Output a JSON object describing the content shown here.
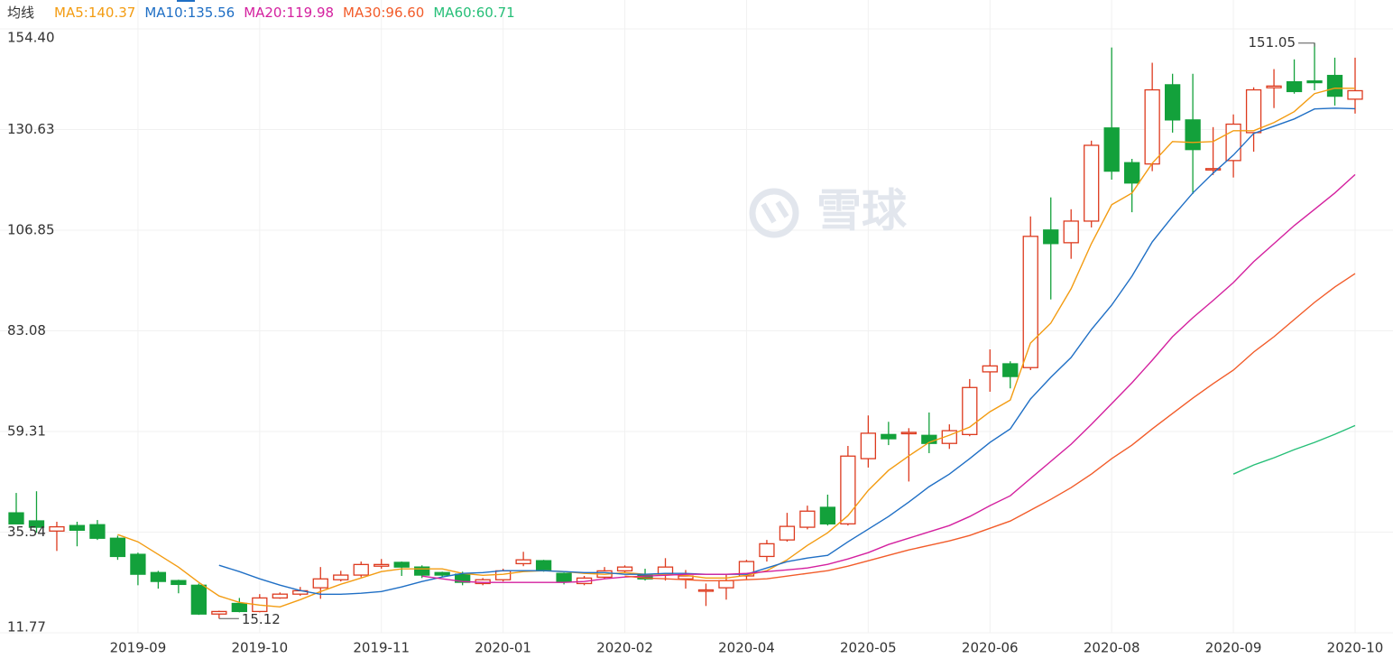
{
  "chart_data": {
    "type": "candlestick",
    "legend_title": "均线",
    "legend_separator": ":",
    "watermark": "雪球",
    "ylim": [
      11.77,
      154.4
    ],
    "yticks": [
      {
        "value": 11.77,
        "label": "11.77"
      },
      {
        "value": 35.54,
        "label": "35.54"
      },
      {
        "value": 59.31,
        "label": "59.31"
      },
      {
        "value": 83.08,
        "label": "83.08"
      },
      {
        "value": 106.85,
        "label": "106.85"
      },
      {
        "value": 130.63,
        "label": "130.63"
      },
      {
        "value": 154.4,
        "label": "154.40"
      }
    ],
    "grid": true,
    "up_color": "#dd3a1e",
    "down_color": "#13a13b",
    "categories": [
      null,
      null,
      null,
      null,
      null,
      null,
      "2019-09",
      null,
      null,
      null,
      null,
      null,
      "2019-10",
      null,
      null,
      null,
      null,
      null,
      "2019-11",
      null,
      null,
      null,
      null,
      null,
      "2020-01",
      null,
      null,
      null,
      null,
      null,
      "2020-02",
      null,
      null,
      null,
      null,
      null,
      "2020-04",
      null,
      null,
      null,
      null,
      null,
      "2020-05",
      null,
      null,
      null,
      null,
      null,
      "2020-06",
      null,
      null,
      null,
      null,
      null,
      "2020-08",
      null,
      null,
      null,
      null,
      null,
      "2020-09",
      null,
      null,
      null,
      null,
      null,
      "2020-10"
    ],
    "open": [
      40.1,
      38.2,
      35.8,
      37.1,
      37.3,
      34.1,
      30.3,
      26.0,
      24.1,
      23.0,
      16.2,
      18.7,
      16.8,
      20.0,
      20.9,
      22.4,
      24.3,
      25.4,
      27.5,
      28.4,
      27.3,
      26.0,
      25.6,
      23.4,
      24.3,
      28.1,
      28.8,
      25.8,
      23.4,
      24.9,
      26.4,
      25.6,
      25.6,
      24.5,
      21.7,
      22.4,
      25.2,
      29.8,
      33.7,
      36.7,
      41.4,
      37.5,
      52.9,
      58.6,
      58.8,
      58.4,
      56.5,
      58.6,
      73.4,
      75.3,
      74.4,
      106.9,
      103.9,
      109.0,
      131.0,
      122.8,
      122.5,
      141.2,
      132.9,
      121.2,
      123.3,
      129.9,
      140.5,
      141.9,
      142.1,
      143.4,
      137.8
    ],
    "close": [
      37.5,
      36.7,
      36.8,
      36.0,
      34.1,
      29.8,
      25.6,
      23.9,
      23.2,
      16.2,
      16.8,
      16.8,
      20.0,
      20.9,
      21.7,
      24.5,
      25.4,
      27.9,
      27.9,
      27.3,
      25.4,
      25.4,
      23.7,
      24.3,
      26.4,
      29.0,
      26.4,
      23.9,
      24.7,
      26.4,
      27.3,
      24.5,
      27.3,
      25.2,
      21.9,
      24.1,
      28.6,
      32.8,
      36.9,
      40.5,
      37.5,
      53.5,
      58.9,
      57.6,
      59.1,
      56.5,
      59.5,
      69.7,
      74.8,
      72.3,
      105.4,
      103.7,
      109.0,
      126.9,
      120.8,
      118.0,
      140.0,
      132.9,
      125.9,
      121.4,
      131.9,
      140.0,
      140.9,
      139.6,
      141.7,
      138.5,
      139.8
    ],
    "high": [
      44.8,
      45.2,
      38.0,
      38.0,
      38.4,
      34.7,
      30.7,
      26.4,
      24.3,
      23.4,
      17.0,
      20.0,
      20.9,
      21.3,
      22.6,
      27.3,
      26.4,
      28.6,
      29.2,
      28.6,
      27.7,
      26.2,
      26.2,
      24.7,
      26.9,
      30.9,
      29.0,
      26.0,
      25.2,
      27.3,
      27.7,
      26.9,
      29.4,
      26.6,
      23.4,
      25.6,
      29.0,
      33.7,
      40.1,
      41.8,
      44.4,
      55.9,
      63.1,
      61.6,
      60.1,
      63.8,
      61.0,
      71.7,
      78.7,
      75.9,
      110.1,
      114.6,
      111.8,
      128.0,
      150.0,
      123.7,
      146.4,
      143.8,
      143.8,
      131.2,
      134.2,
      140.6,
      144.9,
      147.2,
      151.05,
      147.6,
      147.6
    ],
    "low": [
      37.5,
      35.4,
      31.1,
      32.2,
      33.7,
      29.0,
      23.0,
      22.2,
      21.1,
      16.0,
      15.12,
      16.6,
      16.6,
      19.8,
      20.5,
      19.8,
      23.9,
      24.9,
      26.9,
      25.2,
      24.7,
      24.9,
      23.0,
      23.0,
      23.9,
      27.5,
      26.2,
      23.2,
      23.0,
      24.5,
      26.0,
      24.1,
      24.1,
      22.2,
      18.1,
      19.6,
      24.3,
      28.6,
      33.3,
      36.2,
      37.1,
      37.1,
      50.8,
      56.1,
      47.5,
      54.2,
      55.2,
      58.2,
      68.7,
      69.5,
      73.8,
      90.5,
      100.1,
      107.5,
      118.8,
      111.1,
      120.8,
      129.9,
      115.4,
      119.9,
      119.3,
      125.4,
      135.7,
      139.1,
      139.9,
      136.3,
      134.4
    ],
    "series": [
      {
        "name": "MA5",
        "color": "#f39c12",
        "values": [
          null,
          null,
          null,
          null,
          null,
          34.97,
          33.26,
          30.27,
          27.28,
          23.66,
          20.46,
          18.96,
          18.32,
          17.89,
          19.6,
          21.52,
          23.23,
          24.72,
          26.22,
          26.86,
          26.86,
          26.86,
          25.79,
          25.36,
          25.58,
          26.22,
          26.43,
          26.22,
          25.79,
          25.58,
          26.0,
          25.58,
          25.58,
          25.36,
          24.72,
          24.72,
          25.36,
          26.43,
          28.99,
          32.41,
          35.39,
          39.45,
          45.42,
          50.12,
          53.53,
          56.73,
          58.44,
          60.36,
          63.99,
          66.76,
          80.21,
          84.9,
          93.01,
          103.68,
          112.86,
          115.63,
          122.67,
          127.8,
          127.58,
          127.8,
          130.36,
          130.36,
          132.28,
          134.84,
          139.11,
          140.39,
          140.37
        ]
      },
      {
        "name": "MA10",
        "color": "#1f6fc5",
        "values": [
          null,
          null,
          null,
          null,
          null,
          null,
          null,
          null,
          null,
          null,
          27.71,
          26.22,
          24.51,
          23.02,
          21.74,
          20.88,
          20.88,
          21.1,
          21.52,
          22.59,
          23.87,
          24.94,
          25.79,
          26.0,
          26.43,
          26.43,
          26.43,
          26.22,
          26.0,
          26.0,
          25.58,
          25.58,
          25.79,
          25.79,
          25.58,
          25.58,
          25.58,
          27.07,
          28.56,
          29.42,
          30.06,
          33.26,
          36.25,
          39.23,
          42.65,
          46.28,
          49.26,
          52.89,
          56.73,
          59.93,
          66.98,
          72.1,
          76.79,
          83.41,
          89.17,
          96.0,
          104.11,
          110.08,
          115.63,
          120.33,
          124.59,
          129.72,
          131.42,
          133.13,
          135.48,
          135.69,
          135.56
        ]
      },
      {
        "name": "MA20",
        "color": "#d4219f",
        "values": [
          null,
          null,
          null,
          null,
          null,
          null,
          null,
          null,
          null,
          null,
          null,
          null,
          null,
          null,
          null,
          null,
          null,
          null,
          null,
          null,
          25.15,
          24.51,
          23.87,
          23.66,
          23.66,
          23.66,
          23.66,
          23.66,
          23.87,
          24.51,
          24.94,
          25.15,
          25.36,
          25.58,
          25.58,
          25.58,
          25.79,
          26.22,
          26.64,
          27.07,
          27.92,
          29.2,
          30.7,
          32.62,
          34.11,
          35.61,
          37.1,
          39.23,
          41.8,
          44.14,
          48.2,
          52.25,
          56.31,
          61.0,
          65.91,
          70.82,
          76.15,
          81.7,
          86.18,
          90.24,
          94.5,
          99.41,
          103.68,
          107.95,
          111.79,
          115.63,
          119.98
        ]
      },
      {
        "name": "MA30",
        "color": "#f25c2a",
        "values": [
          null,
          null,
          null,
          null,
          null,
          null,
          null,
          null,
          null,
          null,
          null,
          null,
          null,
          null,
          null,
          null,
          null,
          null,
          null,
          null,
          null,
          null,
          null,
          null,
          null,
          null,
          null,
          null,
          null,
          null,
          25.15,
          24.72,
          24.51,
          24.3,
          24.08,
          24.08,
          24.3,
          24.51,
          25.15,
          25.79,
          26.43,
          27.5,
          28.78,
          30.06,
          31.34,
          32.41,
          33.47,
          34.75,
          36.46,
          38.17,
          40.73,
          43.29,
          46.06,
          49.26,
          52.89,
          56.09,
          59.93,
          63.56,
          67.19,
          70.6,
          73.81,
          78.07,
          81.7,
          85.76,
          89.81,
          93.44,
          96.6
        ],
        "value_labels": [
          null,
          null,
          null,
          null,
          null,
          null,
          null,
          null,
          null,
          null,
          null,
          null,
          null,
          null,
          null,
          null,
          null,
          null,
          null,
          null,
          null,
          null,
          null,
          null,
          null,
          null,
          null,
          null,
          null,
          null,
          null,
          null,
          null,
          null,
          null,
          null,
          null,
          null,
          null,
          null,
          null,
          null,
          null,
          null,
          null,
          null,
          null,
          null,
          null,
          null,
          null,
          null,
          null,
          null,
          null,
          null,
          null,
          null,
          null,
          null,
          null,
          null,
          null,
          null,
          null,
          null,
          "96.60"
        ]
      },
      {
        "name": "MA60",
        "color": "#26bf78",
        "values": [
          null,
          null,
          null,
          null,
          null,
          null,
          null,
          null,
          null,
          null,
          null,
          null,
          null,
          null,
          null,
          null,
          null,
          null,
          null,
          null,
          null,
          null,
          null,
          null,
          null,
          null,
          null,
          null,
          null,
          null,
          null,
          null,
          null,
          null,
          null,
          null,
          null,
          null,
          null,
          null,
          null,
          null,
          null,
          null,
          null,
          null,
          null,
          null,
          null,
          null,
          null,
          null,
          null,
          null,
          null,
          null,
          null,
          null,
          null,
          null,
          49.26,
          51.4,
          53.11,
          55.03,
          56.73,
          58.65,
          60.71
        ]
      }
    ]
  }
}
